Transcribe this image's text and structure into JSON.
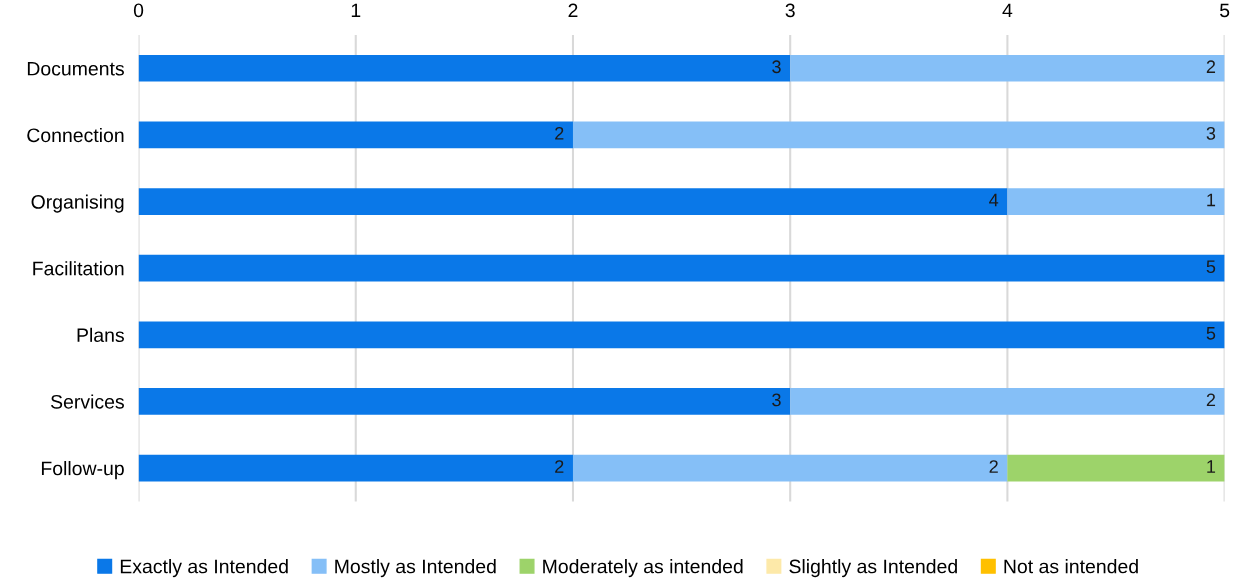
{
  "chart_data": {
    "type": "bar",
    "orientation": "horizontal",
    "stacked": true,
    "categories": [
      "Documents",
      "Connection",
      "Organising",
      "Facilitation",
      "Plans",
      "Services",
      "Follow-up"
    ],
    "series": [
      {
        "name": "Exactly as Intended",
        "color": "#0a78e8",
        "values": [
          3,
          2,
          4,
          5,
          5,
          3,
          2
        ]
      },
      {
        "name": "Mostly as Intended",
        "color": "#85bff7",
        "values": [
          2,
          3,
          1,
          null,
          null,
          2,
          2
        ]
      },
      {
        "name": "Moderately as intended",
        "color": "#9dd36a",
        "values": [
          null,
          null,
          null,
          null,
          null,
          null,
          1
        ]
      },
      {
        "name": "Slightly as Intended",
        "color": "#fde9a9",
        "values": [
          null,
          null,
          null,
          null,
          null,
          null,
          null
        ]
      },
      {
        "name": "Not as intended",
        "color": "#ffc000",
        "values": [
          null,
          null,
          null,
          null,
          null,
          null,
          null
        ]
      }
    ],
    "xlim": [
      0,
      5
    ],
    "xticks": [
      0,
      1,
      2,
      3,
      4,
      5
    ],
    "grid": "x",
    "legend": "bottom",
    "data_labels": true
  }
}
